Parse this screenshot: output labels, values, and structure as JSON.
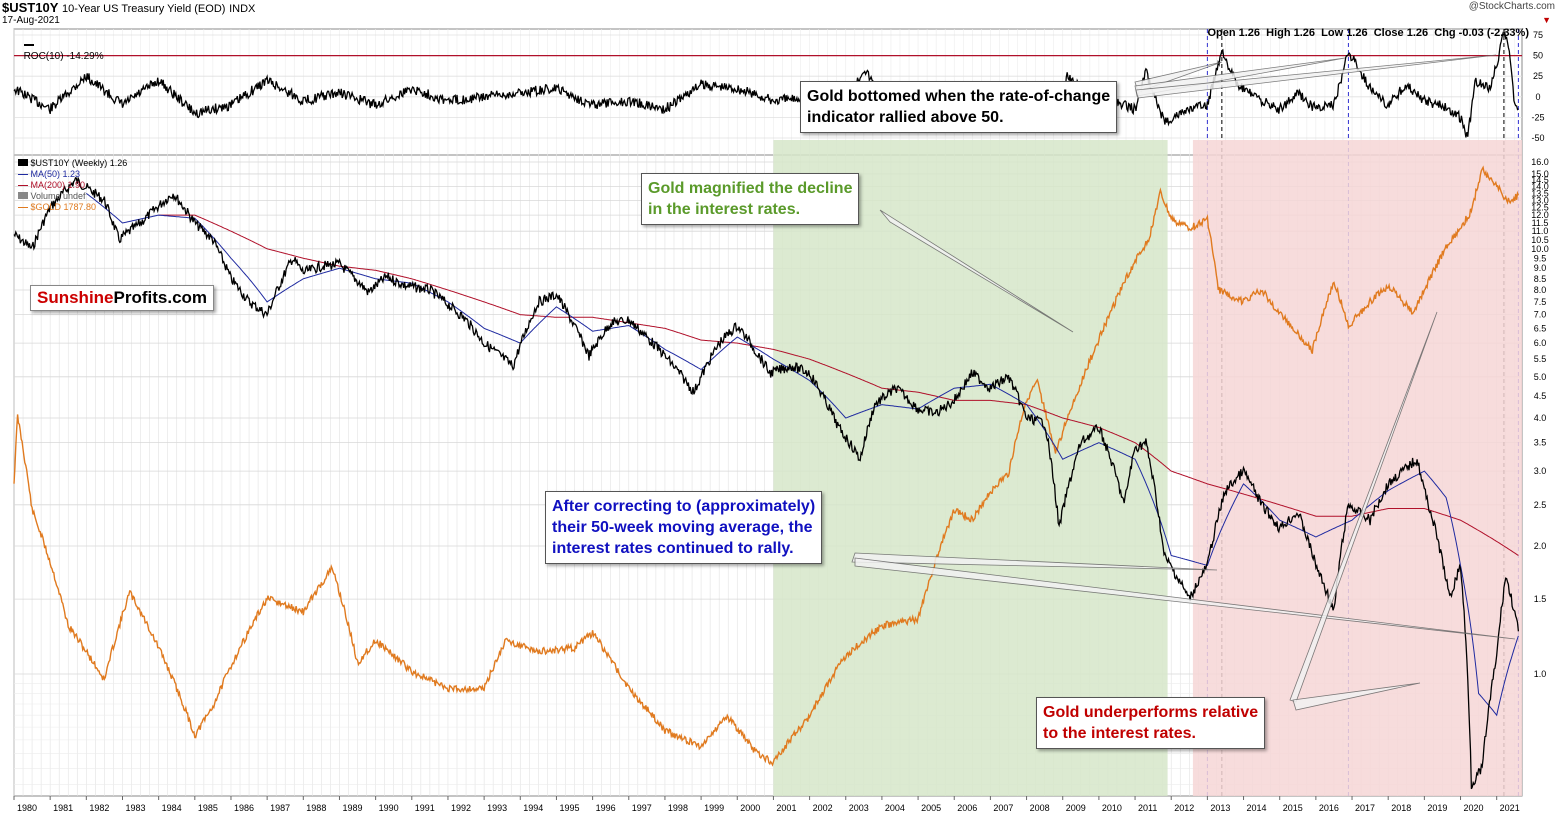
{
  "header": {
    "symbol": "$UST10Y",
    "description": "10-Year US Treasury Yield (EOD)",
    "exchange": "INDX",
    "date": "17-Aug-2021",
    "watermark": "@StockCharts.com",
    "ohlc": "Open 1.26  High 1.26  Low 1.26  Close 1.26  Chg -0.03 (-2.33%)",
    "down_arrow": "▼"
  },
  "roc_panel": {
    "label": "ROC(10) -14.29%"
  },
  "legend": [
    {
      "text": "$UST10Y (Weekly) 1.26",
      "color": "#000000"
    },
    {
      "text": "MA(50) 1.23",
      "color": "#1f2aa0"
    },
    {
      "text": "MA(200) 1.90",
      "color": "#b0102a"
    },
    {
      "text": "Volume undef",
      "color": "#555555"
    },
    {
      "text": "$GOLD 1787.80",
      "color": "#e07a1f"
    }
  ],
  "brand": {
    "part1": "Sunshine",
    "part2": "Profits.com",
    "color1": "#cc0000",
    "color2": "#000000"
  },
  "annotations": {
    "roc": "Gold bottomed when the rate-of-change\nindicator rallied above 50.",
    "green": "Gold magnified the decline\nin the interest rates.",
    "blue": "After correcting to (approximately)\ntheir 50-week moving average, the\ninterest rates continued to rally.",
    "red": "Gold underperforms relative\nto the interest rates."
  },
  "colors": {
    "green_zone": "#d6e6c9",
    "red_zone": "#f6d6d6",
    "gold": "#e07a1f",
    "ma50": "#1f2aa0",
    "ma200": "#b0102a",
    "annotation_green": "#5a9a2a",
    "annotation_blue": "#1010c0",
    "annotation_red": "#c00000"
  },
  "chart_data": {
    "type": "line",
    "x_axis": {
      "years": [
        "1980",
        "1981",
        "1982",
        "1983",
        "1984",
        "1985",
        "1986",
        "1987",
        "1988",
        "1989",
        "1990",
        "1991",
        "1992",
        "1993",
        "1994",
        "1995",
        "1996",
        "1997",
        "1998",
        "1999",
        "2000",
        "2001",
        "2002",
        "2003",
        "2004",
        "2005",
        "2006",
        "2007",
        "2008",
        "2009",
        "2010",
        "2011",
        "2012",
        "2013",
        "2014",
        "2015",
        "2016",
        "2017",
        "2018",
        "2019",
        "2020",
        "2021"
      ]
    },
    "roc_axis": {
      "ticks": [
        75,
        50,
        25,
        0,
        -25,
        -50
      ],
      "threshold": 50
    },
    "yield_axis": {
      "scale": "log",
      "ticks": [
        16.0,
        15.0,
        14.0,
        13.0,
        12.0,
        11.0,
        10.0,
        9.0,
        8.0,
        7.0,
        6.0,
        5.0,
        4.0,
        3.5,
        3.0,
        2.5,
        2.0,
        1.5,
        1.0
      ],
      "tick_labels": [
        "16.0",
        "15.0",
        "14.5",
        "14.0",
        "13.5",
        "13.0",
        "12.5",
        "12.0",
        "11.5",
        "11.0",
        "10.5",
        "10.0",
        "9.5",
        "9.0",
        "8.5",
        "8.0",
        "7.5",
        "7.0",
        "6.5",
        "6.0",
        "5.5",
        "5.0",
        "4.5",
        "4.0",
        "3.5",
        "3.0",
        "2.5",
        "2.0",
        "1.5",
        "1.0"
      ]
    },
    "green_zone": {
      "from": 2001.0,
      "to": 2011.9
    },
    "red_zone": {
      "from": 2012.6,
      "to": 2021.7
    },
    "vlines": [
      2013.0,
      2013.4,
      2016.9,
      2021.2,
      2021.6
    ],
    "series": [
      {
        "name": "$UST10Y (Weekly)",
        "x": [
          1980.0,
          1980.5,
          1981.0,
          1981.7,
          1982.5,
          1982.9,
          1983.5,
          1984.4,
          1985.0,
          1985.5,
          1986.0,
          1986.5,
          1987.0,
          1987.7,
          1988.0,
          1988.5,
          1989.0,
          1989.8,
          1990.3,
          1990.8,
          1991.5,
          1992.0,
          1992.5,
          1993.0,
          1993.8,
          1994.5,
          1995.0,
          1995.9,
          1996.5,
          1997.0,
          1997.5,
          1998.0,
          1998.8,
          1999.5,
          2000.0,
          2000.9,
          2001.5,
          2002.0,
          2002.8,
          2003.4,
          2003.8,
          2004.4,
          2005.0,
          2005.5,
          2006.0,
          2006.5,
          2007.0,
          2007.5,
          2008.0,
          2008.5,
          2008.9,
          2009.5,
          2010.0,
          2010.7,
          2011.0,
          2011.3,
          2011.8,
          2012.5,
          2013.0,
          2013.5,
          2014.0,
          2014.5,
          2015.0,
          2015.5,
          2016.0,
          2016.5,
          2016.9,
          2017.5,
          2018.0,
          2018.8,
          2019.0,
          2019.7,
          2020.0,
          2020.3,
          2020.6,
          2021.0,
          2021.25,
          2021.6
        ],
        "y": [
          10.8,
          10.0,
          12.5,
          14.5,
          13.0,
          10.5,
          11.5,
          13.5,
          11.5,
          10.5,
          8.5,
          7.5,
          7.0,
          9.5,
          8.8,
          9.1,
          9.2,
          7.9,
          8.6,
          8.2,
          8.0,
          7.4,
          6.8,
          6.0,
          5.3,
          7.5,
          7.8,
          5.6,
          6.7,
          6.8,
          6.2,
          5.6,
          4.6,
          6.0,
          6.6,
          5.1,
          5.3,
          5.1,
          3.8,
          3.2,
          4.3,
          4.7,
          4.2,
          4.1,
          4.4,
          5.1,
          4.7,
          5.0,
          4.0,
          3.9,
          2.2,
          3.5,
          3.8,
          2.5,
          3.4,
          3.5,
          1.9,
          1.5,
          1.8,
          2.7,
          3.0,
          2.5,
          2.2,
          2.4,
          1.8,
          1.4,
          2.5,
          2.3,
          2.8,
          3.2,
          2.7,
          1.5,
          1.8,
          0.55,
          0.6,
          1.1,
          1.7,
          1.26
        ]
      },
      {
        "name": "MA(50)",
        "x": [
          1982.0,
          1983.0,
          1984.0,
          1985.0,
          1986.0,
          1987.0,
          1988.0,
          1989.0,
          1990.0,
          1991.0,
          1992.0,
          1993.0,
          1994.0,
          1995.0,
          1996.0,
          1997.0,
          1998.0,
          1999.0,
          2000.0,
          2001.0,
          2002.0,
          2003.0,
          2004.0,
          2005.0,
          2006.0,
          2007.0,
          2008.0,
          2009.0,
          2010.0,
          2011.0,
          2012.0,
          2013.0,
          2014.0,
          2015.0,
          2016.0,
          2017.0,
          2018.0,
          2019.0,
          2019.6,
          2020.0,
          2020.5,
          2021.0,
          2021.6
        ],
        "y": [
          13.5,
          11.5,
          12.0,
          11.8,
          9.5,
          7.5,
          8.5,
          9.0,
          8.5,
          8.3,
          7.5,
          6.5,
          6.0,
          7.3,
          6.4,
          6.6,
          5.8,
          5.2,
          6.2,
          5.5,
          4.9,
          4.0,
          4.3,
          4.2,
          4.7,
          4.8,
          4.3,
          3.2,
          3.5,
          3.2,
          1.9,
          1.8,
          2.8,
          2.3,
          2.1,
          2.3,
          2.7,
          3.0,
          2.6,
          1.8,
          0.9,
          0.8,
          1.23
        ]
      },
      {
        "name": "MA(200)",
        "x": [
          1984.0,
          1985.0,
          1986.0,
          1987.0,
          1988.0,
          1989.0,
          1990.0,
          1991.0,
          1992.0,
          1993.0,
          1994.0,
          1995.0,
          1996.0,
          1997.0,
          1998.0,
          1999.0,
          2000.0,
          2001.0,
          2002.0,
          2003.0,
          2004.0,
          2005.0,
          2006.0,
          2007.0,
          2008.0,
          2009.0,
          2010.0,
          2011.0,
          2012.0,
          2013.0,
          2014.0,
          2015.0,
          2016.0,
          2017.0,
          2018.0,
          2019.0,
          2020.0,
          2021.0,
          2021.6
        ],
        "y": [
          12.0,
          12.0,
          11.0,
          10.0,
          9.5,
          9.1,
          8.9,
          8.5,
          8.0,
          7.5,
          7.0,
          6.9,
          6.9,
          6.7,
          6.5,
          6.1,
          6.0,
          5.8,
          5.5,
          5.1,
          4.7,
          4.6,
          4.4,
          4.4,
          4.3,
          4.0,
          3.8,
          3.5,
          3.0,
          2.8,
          2.65,
          2.5,
          2.35,
          2.35,
          2.45,
          2.45,
          2.3,
          2.05,
          1.9
        ]
      },
      {
        "name": "$GOLD",
        "x": [
          1980.0,
          1980.1,
          1980.5,
          1981.5,
          1982.5,
          1983.2,
          1983.8,
          1985.0,
          1985.5,
          1987.0,
          1988.0,
          1988.8,
          1989.5,
          1990.0,
          1991.0,
          1992.0,
          1993.0,
          1993.6,
          1994.5,
          1995.5,
          1996.0,
          1997.0,
          1998.0,
          1999.0,
          1999.7,
          2000.5,
          2001.0,
          2002.0,
          2003.0,
          2004.0,
          2005.0,
          2006.0,
          2006.5,
          2007.0,
          2007.5,
          2008.0,
          2008.3,
          2008.8,
          2009.5,
          2010.0,
          2010.9,
          2011.4,
          2011.7,
          2012.0,
          2012.5,
          2013.0,
          2013.3,
          2014.0,
          2014.5,
          2015.0,
          2015.9,
          2016.5,
          2016.9,
          2017.5,
          2018.0,
          2018.7,
          2019.0,
          2019.6,
          2020.0,
          2020.3,
          2020.6,
          2021.0,
          2021.3,
          2021.6
        ],
        "y": [
          680,
          850,
          620,
          420,
          350,
          470,
          410,
          290,
          320,
          460,
          440,
          510,
          370,
          400,
          360,
          340,
          340,
          400,
          385,
          390,
          410,
          340,
          295,
          280,
          310,
          275,
          265,
          310,
          380,
          420,
          430,
          620,
          600,
          660,
          700,
          900,
          950,
          750,
          950,
          1100,
          1400,
          1550,
          1800,
          1650,
          1600,
          1650,
          1300,
          1250,
          1300,
          1200,
          1060,
          1340,
          1150,
          1250,
          1320,
          1200,
          1300,
          1500,
          1600,
          1700,
          1950,
          1850,
          1750,
          1787.8
        ]
      },
      {
        "name": "ROC(10)",
        "x": [
          1980.0,
          1981.0,
          1982.0,
          1983.0,
          1984.0,
          1985.0,
          1986.0,
          1987.0,
          1988.0,
          1989.0,
          1990.0,
          1991.0,
          1992.0,
          1993.0,
          1994.0,
          1995.0,
          1996.0,
          1997.0,
          1998.0,
          1999.0,
          2000.0,
          2001.0,
          2002.0,
          2003.0,
          2003.5,
          2004.0,
          2005.0,
          2006.0,
          2007.0,
          2008.0,
          2008.5,
          2008.9,
          2009.1,
          2009.5,
          2010.0,
          2011.0,
          2011.3,
          2011.8,
          2012.5,
          2013.0,
          2013.4,
          2013.8,
          2014.5,
          2015.0,
          2015.5,
          2016.0,
          2016.5,
          2016.9,
          2017.5,
          2018.0,
          2018.5,
          2019.0,
          2019.5,
          2020.0,
          2020.2,
          2020.4,
          2020.8,
          2021.0,
          2021.2,
          2021.35,
          2021.5,
          2021.6
        ],
        "y": [
          10,
          -15,
          25,
          -10,
          20,
          -20,
          -10,
          20,
          -5,
          5,
          -10,
          10,
          -5,
          0,
          5,
          10,
          -10,
          -5,
          -15,
          15,
          10,
          -5,
          0,
          -10,
          35,
          0,
          5,
          10,
          0,
          -15,
          -25,
          -40,
          25,
          10,
          0,
          -15,
          30,
          -30,
          -15,
          -10,
          58,
          15,
          -5,
          -15,
          5,
          -15,
          -10,
          55,
          10,
          -10,
          15,
          -5,
          -10,
          -25,
          -50,
          20,
          10,
          40,
          78,
          55,
          -10,
          -14.29
        ]
      }
    ]
  }
}
